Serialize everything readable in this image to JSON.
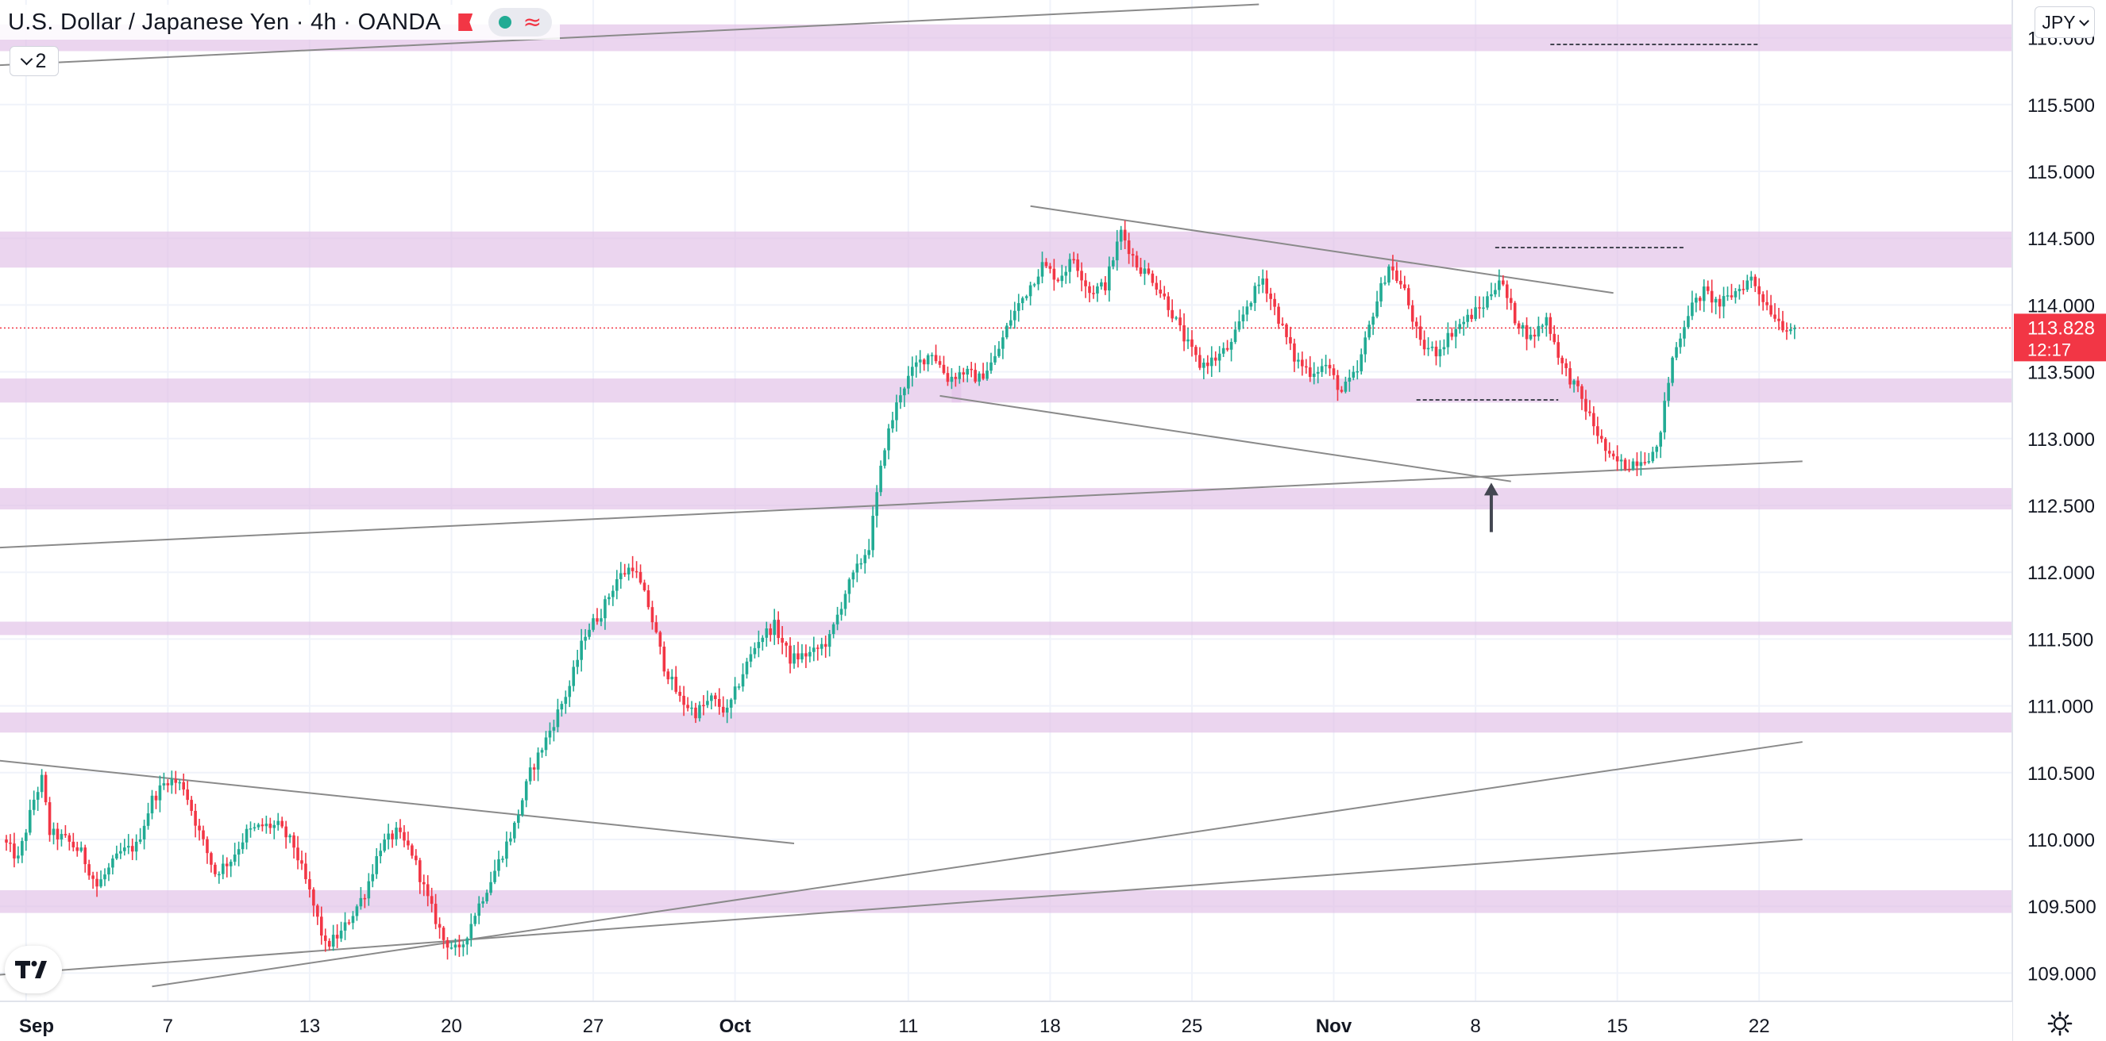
{
  "header": {
    "title": "U.S. Dollar / Japanese Yen · 4h · OANDA",
    "indicators_count": "2",
    "currency": "JPY"
  },
  "price_badge": {
    "price": "113.828",
    "countdown": "12:17"
  },
  "icons": {
    "flag": "flag-icon",
    "status_dot": "market-open-dot-icon",
    "wave": "wave-icon",
    "chevron": "chevron-down-icon",
    "logo": "tradingview-logo-icon",
    "settings": "gear-icon"
  },
  "colors": {
    "up": "#22ab94",
    "down": "#f23645",
    "zone": "#e1bee7",
    "trendline": "#8a8a8a",
    "price_line": "#f23645",
    "arrow": "#434651"
  },
  "chart_data": {
    "type": "candlestick",
    "symbol": "USDJPY",
    "interval": "4h",
    "source": "OANDA",
    "y_axis": {
      "ticks": [
        "109.000",
        "109.500",
        "110.000",
        "110.500",
        "111.000",
        "111.500",
        "112.000",
        "112.500",
        "113.000",
        "113.500",
        "114.000",
        "114.500",
        "115.000",
        "115.500",
        "116.000"
      ],
      "range": [
        108.9,
        116.2
      ]
    },
    "x_axis": {
      "ticks": [
        "Sep",
        "7",
        "13",
        "20",
        "27",
        "Oct",
        "11",
        "18",
        "25",
        "Nov",
        "8",
        "15",
        "22"
      ]
    },
    "last_price": 113.828,
    "grid": true,
    "path_points": [
      [
        0,
        110.0
      ],
      [
        4,
        109.85
      ],
      [
        8,
        110.3
      ],
      [
        10,
        110.45
      ],
      [
        12,
        110.05
      ],
      [
        16,
        110.0
      ],
      [
        20,
        109.9
      ],
      [
        24,
        109.65
      ],
      [
        30,
        109.9
      ],
      [
        34,
        109.95
      ],
      [
        38,
        110.3
      ],
      [
        42,
        110.45
      ],
      [
        46,
        110.4
      ],
      [
        50,
        110.05
      ],
      [
        54,
        109.75
      ],
      [
        58,
        109.85
      ],
      [
        62,
        110.05
      ],
      [
        66,
        110.1
      ],
      [
        70,
        110.1
      ],
      [
        74,
        109.95
      ],
      [
        78,
        109.6
      ],
      [
        82,
        109.2
      ],
      [
        86,
        109.3
      ],
      [
        92,
        109.6
      ],
      [
        96,
        109.95
      ],
      [
        100,
        110.05
      ],
      [
        104,
        109.9
      ],
      [
        108,
        109.55
      ],
      [
        112,
        109.25
      ],
      [
        116,
        109.15
      ],
      [
        120,
        109.45
      ],
      [
        124,
        109.7
      ],
      [
        130,
        110.1
      ],
      [
        134,
        110.5
      ],
      [
        138,
        110.75
      ],
      [
        144,
        111.15
      ],
      [
        148,
        111.55
      ],
      [
        152,
        111.7
      ],
      [
        156,
        111.95
      ],
      [
        160,
        112.05
      ],
      [
        164,
        111.75
      ],
      [
        168,
        111.3
      ],
      [
        172,
        111.05
      ],
      [
        176,
        110.95
      ],
      [
        180,
        111.05
      ],
      [
        184,
        110.95
      ],
      [
        188,
        111.25
      ],
      [
        192,
        111.5
      ],
      [
        196,
        111.6
      ],
      [
        200,
        111.35
      ],
      [
        206,
        111.4
      ],
      [
        210,
        111.5
      ],
      [
        214,
        111.85
      ],
      [
        220,
        112.2
      ],
      [
        224,
        112.95
      ],
      [
        228,
        113.35
      ],
      [
        232,
        113.55
      ],
      [
        236,
        113.65
      ],
      [
        240,
        113.45
      ],
      [
        244,
        113.5
      ],
      [
        248,
        113.45
      ],
      [
        252,
        113.6
      ],
      [
        256,
        113.9
      ],
      [
        260,
        114.1
      ],
      [
        264,
        114.3
      ],
      [
        268,
        114.2
      ],
      [
        272,
        114.35
      ],
      [
        276,
        114.1
      ],
      [
        280,
        114.15
      ],
      [
        284,
        114.55
      ],
      [
        288,
        114.3
      ],
      [
        292,
        114.2
      ],
      [
        296,
        114.0
      ],
      [
        300,
        113.75
      ],
      [
        304,
        113.55
      ],
      [
        308,
        113.6
      ],
      [
        312,
        113.7
      ],
      [
        316,
        114.0
      ],
      [
        320,
        114.2
      ],
      [
        324,
        113.9
      ],
      [
        328,
        113.6
      ],
      [
        332,
        113.5
      ],
      [
        336,
        113.55
      ],
      [
        340,
        113.35
      ],
      [
        344,
        113.5
      ],
      [
        348,
        113.95
      ],
      [
        352,
        114.3
      ],
      [
        356,
        114.1
      ],
      [
        360,
        113.7
      ],
      [
        364,
        113.65
      ],
      [
        368,
        113.8
      ],
      [
        372,
        113.9
      ],
      [
        376,
        114.0
      ],
      [
        380,
        114.2
      ],
      [
        384,
        113.9
      ],
      [
        388,
        113.75
      ],
      [
        392,
        113.9
      ],
      [
        396,
        113.55
      ],
      [
        400,
        113.35
      ],
      [
        404,
        113.1
      ],
      [
        408,
        112.85
      ],
      [
        412,
        112.8
      ],
      [
        416,
        112.85
      ],
      [
        420,
        112.9
      ],
      [
        424,
        113.6
      ],
      [
        428,
        113.95
      ],
      [
        432,
        114.1
      ],
      [
        436,
        114.0
      ],
      [
        440,
        114.1
      ],
      [
        444,
        114.2
      ],
      [
        448,
        114.0
      ],
      [
        452,
        113.85
      ],
      [
        454,
        113.83
      ]
    ],
    "zones": [
      [
        115.9,
        116.1
      ],
      [
        114.28,
        114.55
      ],
      [
        113.27,
        113.45
      ],
      [
        112.47,
        112.63
      ],
      [
        111.53,
        111.63
      ],
      [
        110.8,
        110.95
      ],
      [
        109.45,
        109.62
      ]
    ],
    "trendlines": [
      [
        [
          -5,
          115.79
        ],
        [
          318,
          116.25
        ]
      ],
      [
        [
          -5,
          112.18
        ],
        [
          456,
          112.83
        ]
      ],
      [
        [
          -5,
          108.98
        ],
        [
          456,
          110.0
        ]
      ],
      [
        [
          37,
          108.9
        ],
        [
          456,
          110.73
        ]
      ],
      [
        [
          -5,
          110.6
        ],
        [
          200,
          109.97
        ]
      ],
      [
        [
          260,
          114.74
        ],
        [
          408,
          114.09
        ]
      ],
      [
        [
          237,
          113.32
        ],
        [
          382,
          112.68
        ]
      ]
    ],
    "dashed_levels": [
      [
        392,
        445,
        115.95
      ],
      [
        378,
        426,
        114.43
      ],
      [
        358,
        394,
        113.29
      ]
    ],
    "annotation_arrow": [
      377,
      112.3,
      112.67
    ]
  }
}
